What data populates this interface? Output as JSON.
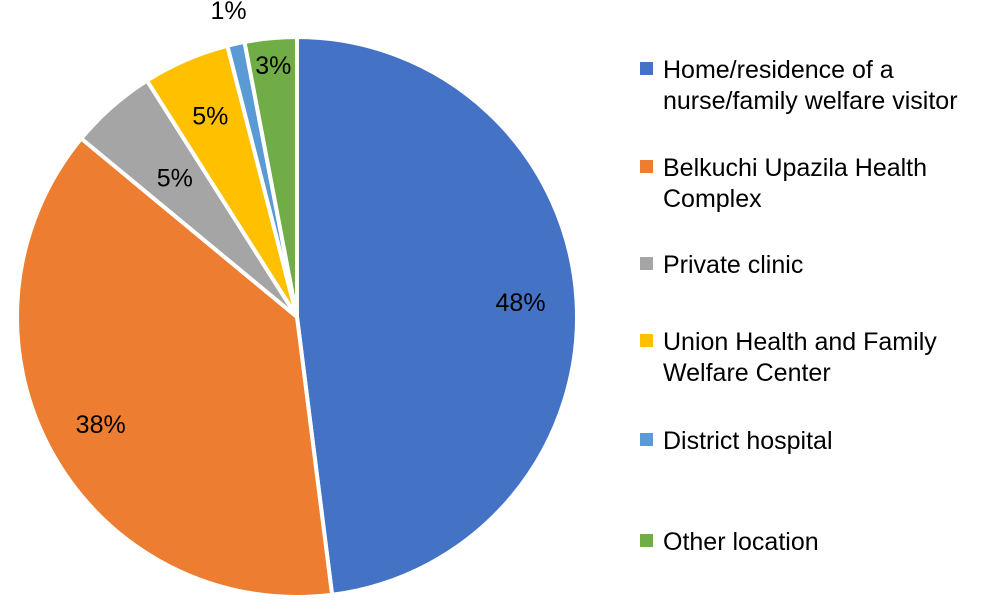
{
  "chart_data": {
    "type": "pie",
    "title": "",
    "start": "top",
    "direction": "clockwise",
    "legend_position": "right",
    "slices": [
      {
        "label": "Home/residence of a nurse/family welfare visitor",
        "value": 48,
        "data_label": "48%",
        "color": "#4472C4"
      },
      {
        "label": "Belkuchi Upazila Health Complex",
        "value": 38,
        "data_label": "38%",
        "color": "#ED7D31"
      },
      {
        "label": "Private clinic",
        "value": 5,
        "data_label": "5%",
        "color": "#A5A5A5"
      },
      {
        "label": "Union Health and Family Welfare Center",
        "value": 5,
        "data_label": "5%",
        "color": "#FFC000"
      },
      {
        "label": "District hospital",
        "value": 1,
        "data_label": "1%",
        "color": "#5B9BD5"
      },
      {
        "label": "Other location",
        "value": 3,
        "data_label": "3%",
        "color": "#70AD47"
      }
    ]
  },
  "legend": [
    {
      "text": "Home/residence of a\nnurse/family welfare visitor"
    },
    {
      "text": "Belkuchi Upazila Health\nComplex"
    },
    {
      "text": "Private clinic"
    },
    {
      "text": "Union Health and Family\nWelfare Center"
    },
    {
      "text": "District hospital"
    },
    {
      "text": "Other location"
    }
  ]
}
